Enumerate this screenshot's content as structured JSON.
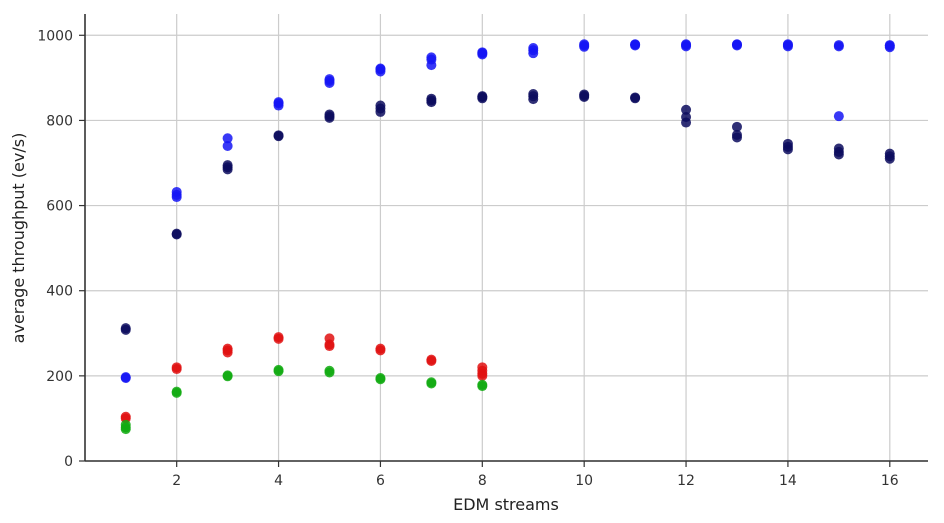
{
  "chart_data": {
    "type": "scatter",
    "title": "",
    "xlabel": "EDM streams",
    "ylabel": "average throughput (ev/s)",
    "xlim": [
      0.2,
      16.75
    ],
    "ylim": [
      0,
      1050
    ],
    "xticks": [
      2,
      4,
      6,
      8,
      10,
      12,
      14,
      16
    ],
    "yticks": [
      0,
      200,
      400,
      600,
      800,
      1000
    ],
    "grid": true,
    "legend": "none",
    "series": [
      {
        "color": "#1515f5",
        "points": [
          [
            1,
            195
          ],
          [
            1,
            197
          ],
          [
            2,
            620
          ],
          [
            2,
            625
          ],
          [
            2,
            632
          ],
          [
            3,
            740
          ],
          [
            3,
            758
          ],
          [
            4,
            835
          ],
          [
            4,
            840
          ],
          [
            4,
            843
          ],
          [
            5,
            888
          ],
          [
            5,
            893
          ],
          [
            5,
            897
          ],
          [
            6,
            915
          ],
          [
            6,
            920
          ],
          [
            6,
            922
          ],
          [
            7,
            930
          ],
          [
            7,
            943
          ],
          [
            7,
            948
          ],
          [
            8,
            955
          ],
          [
            8,
            958
          ],
          [
            8,
            960
          ],
          [
            9,
            958
          ],
          [
            9,
            965
          ],
          [
            9,
            970
          ],
          [
            10,
            973
          ],
          [
            10,
            976
          ],
          [
            10,
            979
          ],
          [
            11,
            976
          ],
          [
            11,
            978
          ],
          [
            11,
            979
          ],
          [
            12,
            974
          ],
          [
            12,
            977
          ],
          [
            12,
            979
          ],
          [
            13,
            976
          ],
          [
            13,
            978
          ],
          [
            13,
            979
          ],
          [
            14,
            974
          ],
          [
            14,
            977
          ],
          [
            14,
            979
          ],
          [
            15,
            810
          ],
          [
            15,
            974
          ],
          [
            15,
            977
          ],
          [
            16,
            972
          ],
          [
            16,
            975
          ],
          [
            16,
            977
          ]
        ]
      },
      {
        "color": "#0c0c5e",
        "points": [
          [
            1,
            308
          ],
          [
            1,
            312
          ],
          [
            2,
            532
          ],
          [
            2,
            534
          ],
          [
            3,
            685
          ],
          [
            3,
            690
          ],
          [
            3,
            695
          ],
          [
            4,
            763
          ],
          [
            4,
            765
          ],
          [
            5,
            806
          ],
          [
            5,
            810
          ],
          [
            5,
            814
          ],
          [
            6,
            820
          ],
          [
            6,
            828
          ],
          [
            6,
            835
          ],
          [
            7,
            843
          ],
          [
            7,
            847
          ],
          [
            7,
            851
          ],
          [
            8,
            852
          ],
          [
            8,
            855
          ],
          [
            8,
            857
          ],
          [
            9,
            850
          ],
          [
            9,
            857
          ],
          [
            9,
            862
          ],
          [
            10,
            855
          ],
          [
            10,
            858
          ],
          [
            10,
            861
          ],
          [
            11,
            852
          ],
          [
            11,
            854
          ],
          [
            12,
            795
          ],
          [
            12,
            808
          ],
          [
            12,
            825
          ],
          [
            13,
            760
          ],
          [
            13,
            766
          ],
          [
            13,
            785
          ],
          [
            14,
            732
          ],
          [
            14,
            738
          ],
          [
            14,
            745
          ],
          [
            15,
            720
          ],
          [
            15,
            726
          ],
          [
            15,
            734
          ],
          [
            16,
            710
          ],
          [
            16,
            716
          ],
          [
            16,
            722
          ]
        ]
      },
      {
        "color": "#e01010",
        "points": [
          [
            1,
            100
          ],
          [
            1,
            104
          ],
          [
            2,
            216
          ],
          [
            2,
            220
          ],
          [
            3,
            255
          ],
          [
            3,
            260
          ],
          [
            3,
            264
          ],
          [
            4,
            287
          ],
          [
            4,
            291
          ],
          [
            5,
            270
          ],
          [
            5,
            274
          ],
          [
            5,
            288
          ],
          [
            6,
            260
          ],
          [
            6,
            264
          ],
          [
            7,
            235
          ],
          [
            7,
            238
          ],
          [
            8,
            200
          ],
          [
            8,
            205
          ],
          [
            8,
            212
          ],
          [
            8,
            220
          ]
        ]
      },
      {
        "color": "#10aa10",
        "points": [
          [
            1,
            75
          ],
          [
            1,
            79
          ],
          [
            1,
            85
          ],
          [
            2,
            160
          ],
          [
            2,
            163
          ],
          [
            3,
            199
          ],
          [
            3,
            201
          ],
          [
            4,
            211
          ],
          [
            4,
            214
          ],
          [
            5,
            208
          ],
          [
            5,
            212
          ],
          [
            6,
            192
          ],
          [
            6,
            195
          ],
          [
            7,
            182
          ],
          [
            7,
            185
          ],
          [
            8,
            176
          ],
          [
            8,
            179
          ]
        ]
      }
    ]
  }
}
